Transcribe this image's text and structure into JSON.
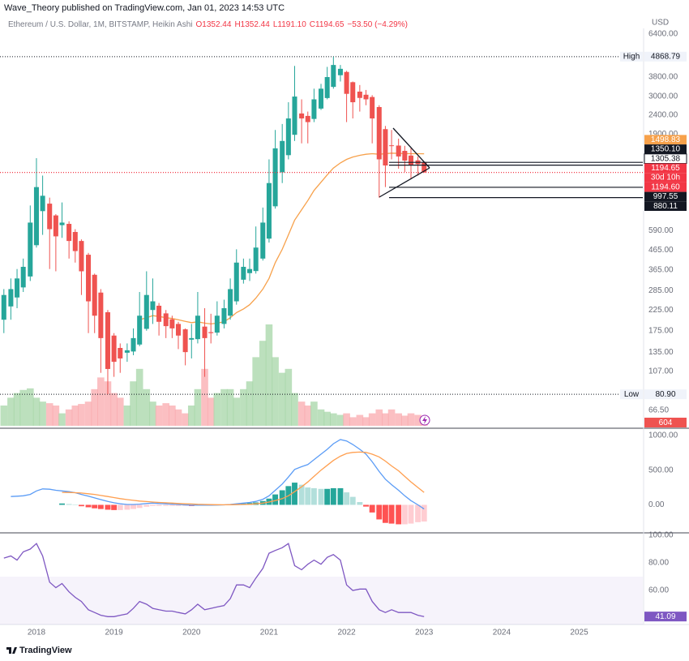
{
  "header": {
    "publisher": "Wave_Theory published on TradingView.com, Jan 01, 2023 14:53 UTC"
  },
  "legend": {
    "symbol": "Ethereum / U.S. Dollar, 1M, BITSTAMP, Heikin Ashi",
    "values": [
      "O1352.44",
      "H1352.44",
      "L1191.10",
      "C1194.65",
      "−53.50 (−4.29%)"
    ]
  },
  "footer": {
    "brand": "TradingView"
  },
  "chart_data": [
    {
      "type": "candlestick",
      "unit": "USD",
      "log_scale": true,
      "xlim": [
        2017.53,
        2025.82
      ],
      "x": [
        2017.58,
        2017.67,
        2017.75,
        2017.83,
        2017.92,
        2018.0,
        2018.08,
        2018.17,
        2018.25,
        2018.33,
        2018.42,
        2018.5,
        2018.58,
        2018.67,
        2018.75,
        2018.83,
        2018.92,
        2019.0,
        2019.08,
        2019.17,
        2019.25,
        2019.33,
        2019.42,
        2019.5,
        2019.58,
        2019.67,
        2019.75,
        2019.83,
        2019.92,
        2020.0,
        2020.08,
        2020.17,
        2020.25,
        2020.33,
        2020.42,
        2020.5,
        2020.58,
        2020.67,
        2020.75,
        2020.83,
        2020.92,
        2021.0,
        2021.08,
        2021.17,
        2021.25,
        2021.33,
        2021.42,
        2021.5,
        2021.58,
        2021.67,
        2021.75,
        2021.83,
        2021.92,
        2022.0,
        2022.08,
        2022.17,
        2022.25,
        2022.33,
        2022.42,
        2022.5,
        2022.58,
        2022.67,
        2022.75,
        2022.83,
        2022.92,
        2023.0
      ],
      "open": [
        200,
        235,
        262,
        296,
        338,
        494,
        747,
        818,
        709,
        630,
        640,
        580,
        520,
        440,
        345,
        278,
        219,
        165,
        142,
        134,
        136,
        148,
        179,
        225,
        237,
        216,
        201,
        190,
        178,
        157,
        158,
        184,
        172,
        171,
        190,
        210,
        250,
        325,
        352,
        361,
        420,
        535,
        792,
        1196,
        1473,
        1886,
        2443,
        2372,
        2286,
        2593,
        2946,
        3373,
        3886,
        4043,
        3571,
        3185,
        3067,
        2983,
        2641,
        2020,
        1660,
        1655,
        1552,
        1466,
        1383,
        1352.44
      ],
      "high": [
        290,
        330,
        370,
        420,
        800,
        1420,
        1150,
        880,
        720,
        830,
        660,
        600,
        530,
        450,
        350,
        290,
        225,
        170,
        150,
        150,
        180,
        280,
        360,
        330,
        245,
        225,
        210,
        195,
        180,
        190,
        280,
        230,
        215,
        250,
        255,
        330,
        470,
        420,
        420,
        620,
        780,
        1400,
        2000,
        2150,
        2800,
        4350,
        2900,
        2500,
        3300,
        3500,
        4300,
        4868.79,
        4400,
        4100,
        3600,
        3450,
        3250,
        3050,
        2700,
        2100,
        2000,
        1800,
        1650,
        1600,
        1450,
        1352.44
      ],
      "low": [
        170,
        200,
        230,
        280,
        320,
        480,
        560,
        370,
        360,
        540,
        420,
        400,
        270,
        170,
        170,
        105,
        80.9,
        100,
        105,
        120,
        130,
        145,
        175,
        190,
        165,
        160,
        160,
        140,
        115,
        125,
        150,
        100,
        150,
        165,
        180,
        200,
        240,
        310,
        320,
        350,
        410,
        510,
        770,
        1050,
        1400,
        1750,
        1700,
        1700,
        2200,
        2550,
        2900,
        3300,
        3600,
        2200,
        2300,
        2500,
        2700,
        1700,
        880.11,
        1000,
        1400,
        1250,
        1200,
        1100,
        1150,
        1191.1
      ],
      "close": [
        270,
        290,
        330,
        380,
        650,
        1000,
        900,
        600,
        550,
        650,
        520,
        460,
        360,
        250,
        210,
        160,
        110,
        120,
        125,
        138,
        160,
        210,
        270,
        250,
        195,
        185,
        180,
        165,
        135,
        160,
        210,
        160,
        170,
        210,
        230,
        290,
        400,
        380,
        370,
        480,
        650,
        1050,
        1600,
        1750,
        2300,
        3000,
        2300,
        2200,
        2900,
        3300,
        3800,
        4400,
        4200,
        3100,
        2800,
        2950,
        2900,
        2300,
        1400,
        1300,
        1650,
        1450,
        1380,
        1300,
        1321,
        1194.65
      ],
      "up_color": "#26a69a",
      "down_color": "#ef5350",
      "ema": {
        "color": "#f7a14b",
        "values": [
          null,
          null,
          null,
          null,
          null,
          null,
          null,
          null,
          null,
          null,
          null,
          null,
          null,
          null,
          null,
          null,
          null,
          null,
          null,
          null,
          null,
          200,
          205,
          210,
          208,
          205,
          203,
          200,
          196,
          193,
          195,
          192,
          190,
          192,
          195,
          205,
          218,
          228,
          240,
          260,
          290,
          330,
          400,
          470,
          560,
          670,
          760,
          850,
          960,
          1060,
          1160,
          1260,
          1340,
          1400,
          1440,
          1470,
          1490,
          1500,
          1490,
          1500,
          1510,
          1505,
          1502,
          1500,
          1500,
          1498.83
        ]
      },
      "volume": {
        "ylim": [
          0,
          6500
        ],
        "up_color": "#a5d6a7",
        "down_color": "#f9a9ad",
        "values": [
          1300,
          1800,
          2100,
          2300,
          2400,
          1800,
          1550,
          1450,
          1300,
          800,
          1050,
          1300,
          1400,
          1550,
          2350,
          3100,
          2850,
          2100,
          1800,
          1300,
          2850,
          3650,
          2350,
          1550,
          1300,
          1450,
          1300,
          1050,
          800,
          1300,
          2350,
          3650,
          1800,
          2100,
          2350,
          2350,
          1800,
          2350,
          2850,
          4400,
          5450,
          6500,
          4400,
          3400,
          3650,
          2100,
          1550,
          1300,
          1550,
          1050,
          900,
          800,
          700,
          800,
          550,
          700,
          550,
          800,
          1050,
          800,
          1050,
          800,
          650,
          800,
          700,
          604
        ]
      },
      "ylim": [
        53.6,
        6860
      ],
      "yticks": [
        {
          "value": 6400,
          "label": "6400.00"
        },
        {
          "value": 3800,
          "label": "3800.00"
        },
        {
          "value": 3000,
          "label": "3000.00"
        },
        {
          "value": 2400,
          "label": "2400.00"
        },
        {
          "value": 1900,
          "label": "1900.00"
        },
        {
          "value": 590,
          "label": "590.00"
        },
        {
          "value": 465,
          "label": "465.00"
        },
        {
          "value": 365,
          "label": "365.00"
        },
        {
          "value": 285,
          "label": "285.00"
        },
        {
          "value": 225,
          "label": "225.00"
        },
        {
          "value": 175,
          "label": "175.00"
        },
        {
          "value": 135,
          "label": "135.00"
        },
        {
          "value": 107,
          "label": "107.00"
        },
        {
          "value": 66.5,
          "label": "66.50"
        }
      ],
      "extremes": [
        {
          "label": "High",
          "value": 4868.79
        },
        {
          "label": "Low",
          "value": 80.9,
          "value_label": "80.90"
        }
      ],
      "price_labels": [
        {
          "value": 1498.83,
          "label": "1498.83",
          "color": "#f7a14b",
          "text_color": "#ffffff"
        },
        {
          "value": 1350.1,
          "label": "1350.10",
          "color": "#131722",
          "text_color": "#ffffff",
          "line": "solid"
        },
        {
          "value": 1305.38,
          "label": "1305.38",
          "color": "#ffffff",
          "text_color": "#131722",
          "line": "solid"
        },
        {
          "value": 1194.65,
          "label": "1194.65",
          "color": "#f23645",
          "text_color": "#ffffff",
          "line": "dotted"
        },
        {
          "label": "30d 10h",
          "color": "#f23645",
          "text_color": "#ffffff"
        },
        {
          "value": 1194.6,
          "label": "1194.60",
          "color": "#f23645",
          "text_color": "#ffffff"
        },
        {
          "value": 997.55,
          "label": "997.55",
          "color": "#131722",
          "text_color": "#ffffff",
          "line": "solid"
        },
        {
          "value": 880.11,
          "label": "880.11",
          "color": "#131722",
          "text_color": "#ffffff",
          "line": "solid"
        }
      ]
    },
    {
      "type": "macd",
      "ylim": [
        -380,
        1080
      ],
      "yticks": [
        {
          "value": 1000,
          "label": "1000.00"
        },
        {
          "value": 500,
          "label": "500.00"
        },
        {
          "value": 0,
          "label": "0.00"
        }
      ],
      "series": [
        {
          "color": "#5b9cf6",
          "values": [
            null,
            120,
            125,
            130,
            150,
            200,
            230,
            225,
            210,
            200,
            190,
            175,
            150,
            125,
            100,
            75,
            50,
            30,
            15,
            5,
            5,
            10,
            20,
            25,
            20,
            15,
            10,
            5,
            0,
            -5,
            -3,
            -5,
            -5,
            -3,
            0,
            5,
            15,
            25,
            35,
            50,
            80,
            130,
            210,
            300,
            400,
            510,
            550,
            580,
            650,
            730,
            800,
            880,
            940,
            920,
            870,
            800,
            730,
            620,
            480,
            370,
            290,
            210,
            130,
            60,
            0,
            -60
          ]
        },
        {
          "color": "#ff9f50",
          "values": [
            null,
            null,
            null,
            null,
            null,
            null,
            null,
            null,
            null,
            180,
            178,
            175,
            170,
            160,
            150,
            135,
            120,
            105,
            90,
            75,
            65,
            55,
            47,
            40,
            35,
            30,
            25,
            20,
            15,
            12,
            8,
            5,
            3,
            2,
            1,
            2,
            3,
            5,
            8,
            15,
            25,
            40,
            60,
            90,
            130,
            190,
            260,
            330,
            410,
            500,
            570,
            640,
            700,
            740,
            755,
            760,
            755,
            730,
            690,
            630,
            560,
            490,
            410,
            330,
            250,
            180
          ]
        }
      ],
      "histogram": {
        "colors": [
          "#26a69a",
          "#b2dfdb",
          "#ffcdd2",
          "#ff5252"
        ],
        "values": [
          null,
          null,
          null,
          null,
          null,
          null,
          null,
          null,
          null,
          20,
          12,
          0,
          -20,
          -35,
          -50,
          -60,
          -70,
          -75,
          -75,
          -70,
          -60,
          -45,
          -27,
          -15,
          -15,
          -15,
          -15,
          -15,
          -15,
          -17,
          -11,
          -10,
          -8,
          -5,
          -1,
          3,
          12,
          20,
          27,
          35,
          55,
          90,
          150,
          210,
          270,
          320,
          290,
          250,
          240,
          230,
          230,
          240,
          240,
          180,
          115,
          40,
          -25,
          -110,
          -210,
          -260,
          -270,
          -280,
          -280,
          -270,
          -250,
          -240
        ]
      }
    },
    {
      "type": "line",
      "ylim": [
        35.3,
        100
      ],
      "band": [
        30,
        70
      ],
      "band_color": "#7e57c2",
      "yticks": [
        {
          "value": 100,
          "label": "100.00"
        },
        {
          "value": 80,
          "label": "80.00"
        },
        {
          "value": 60,
          "label": "60.00"
        }
      ],
      "xticks": [
        2018,
        2019,
        2020,
        2021,
        2022,
        2023,
        2024,
        2025
      ],
      "series": [
        {
          "color": "#7e57c2",
          "values": [
            83.5,
            85,
            82,
            88,
            90,
            94,
            85,
            66,
            62,
            65,
            59,
            55,
            52,
            46,
            44,
            42,
            41,
            41,
            42,
            43,
            47,
            52,
            50,
            47,
            46,
            45,
            45,
            44,
            43,
            46,
            50,
            46,
            47,
            48,
            49,
            54,
            64,
            64,
            62,
            69,
            76,
            87,
            89,
            91,
            94,
            78,
            75,
            79,
            82,
            79,
            84,
            86,
            82,
            64,
            60,
            61,
            61,
            52,
            46,
            44,
            46,
            44,
            44,
            44,
            42,
            41.09
          ]
        }
      ]
    }
  ]
}
